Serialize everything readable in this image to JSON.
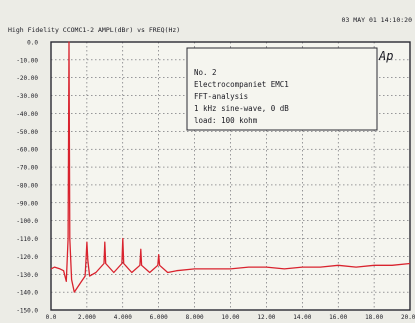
{
  "header": {
    "title": "High Fidelity  CCOMC1-2    AMPL(dBr)  vs  FREQ(Hz)",
    "timestamp": "03 MAY 01  14:10:20"
  },
  "logo": {
    "text": "Ap"
  },
  "annotation": {
    "lines": [
      "No. 2",
      "Electrocompaniet  EMC1",
      "FFT-analysis",
      "1 kHz  sine-wave,  0  dB",
      "load:  100  kohm"
    ]
  },
  "colors": {
    "trace": "#d9232e",
    "grid": "#3a3a44",
    "background": "#f5f5ef"
  },
  "chart_data": {
    "type": "line",
    "title": "High Fidelity  CCOMC1-2    AMPL(dBr)  vs  FREQ(Hz)",
    "xlabel": "",
    "ylabel": "",
    "xlim": [
      0,
      20000
    ],
    "ylim": [
      -150,
      0
    ],
    "x_ticks": [
      "0.0",
      "2.000",
      "4.000",
      "6.000",
      "8.000",
      "10.00",
      "12.00",
      "14.00",
      "16.00",
      "18.00",
      "20.00"
    ],
    "y_ticks": [
      "0.0",
      "-10.00",
      "-20.00",
      "-30.00",
      "-40.00",
      "-50.00",
      "-60.00",
      "-70.00",
      "-80.00",
      "-90.00",
      "-100.0",
      "-110.0",
      "-120.0",
      "-130.0",
      "-140.0",
      "-150.0"
    ],
    "grid": true,
    "series": [
      {
        "values": [
          [
            0,
            -127
          ],
          [
            200,
            -126
          ],
          [
            500,
            -127
          ],
          [
            700,
            -128
          ],
          [
            850,
            -134
          ],
          [
            950,
            -110
          ],
          [
            1000,
            0
          ],
          [
            1050,
            -110
          ],
          [
            1150,
            -133
          ],
          [
            1300,
            -140
          ],
          [
            1500,
            -137
          ],
          [
            1700,
            -134
          ],
          [
            1900,
            -131
          ],
          [
            1950,
            -122
          ],
          [
            2000,
            -112
          ],
          [
            2050,
            -122
          ],
          [
            2150,
            -131
          ],
          [
            2500,
            -129
          ],
          [
            2950,
            -124
          ],
          [
            3000,
            -112
          ],
          [
            3050,
            -124
          ],
          [
            3500,
            -129
          ],
          [
            3950,
            -124
          ],
          [
            4000,
            -110
          ],
          [
            4050,
            -124
          ],
          [
            4500,
            -129
          ],
          [
            4950,
            -125
          ],
          [
            5000,
            -116
          ],
          [
            5050,
            -125
          ],
          [
            5500,
            -129
          ],
          [
            5950,
            -125
          ],
          [
            6000,
            -119
          ],
          [
            6050,
            -125
          ],
          [
            6500,
            -129
          ],
          [
            7000,
            -128
          ],
          [
            8000,
            -127
          ],
          [
            9000,
            -127
          ],
          [
            10000,
            -127
          ],
          [
            11000,
            -126
          ],
          [
            12000,
            -126
          ],
          [
            13000,
            -127
          ],
          [
            14000,
            -126
          ],
          [
            15000,
            -126
          ],
          [
            16000,
            -125
          ],
          [
            17000,
            -126
          ],
          [
            18000,
            -125
          ],
          [
            19000,
            -125
          ],
          [
            20000,
            -124
          ]
        ]
      }
    ]
  }
}
